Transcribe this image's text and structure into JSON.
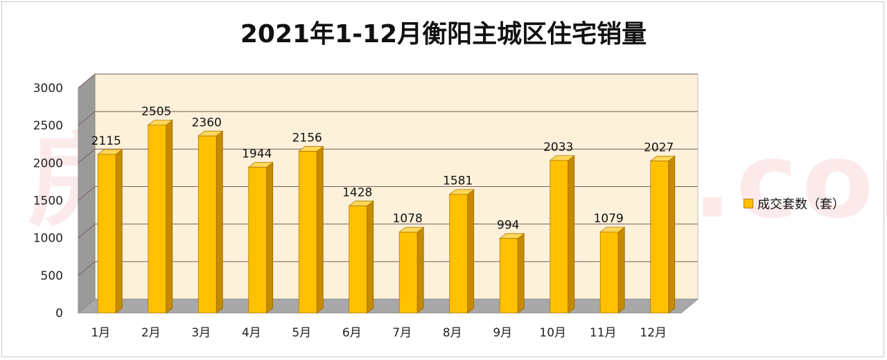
{
  "title": "2021年1-12月衡阳主城区住宅销量",
  "watermark": "房天下 Fang.com",
  "legend": {
    "label": "成交套数（套）"
  },
  "colors": {
    "bar": "#ffc000",
    "bar_side": "#c68a00",
    "bar_top": "#ffd75a",
    "wall": "#fdf1da"
  },
  "chart_data": {
    "type": "bar",
    "categories": [
      "1月",
      "2月",
      "3月",
      "4月",
      "5月",
      "6月",
      "7月",
      "8月",
      "9月",
      "10月",
      "11月",
      "12月"
    ],
    "series": [
      {
        "name": "成交套数（套）",
        "values": [
          2115,
          2505,
          2360,
          1944,
          2156,
          1428,
          1078,
          1581,
          994,
          2033,
          1079,
          2027
        ]
      }
    ],
    "ylim": [
      0,
      3000
    ],
    "yticks": [
      "0",
      "500",
      "1000",
      "1500",
      "2000",
      "2500",
      "3000"
    ],
    "grid": true,
    "legend_position": "right"
  }
}
